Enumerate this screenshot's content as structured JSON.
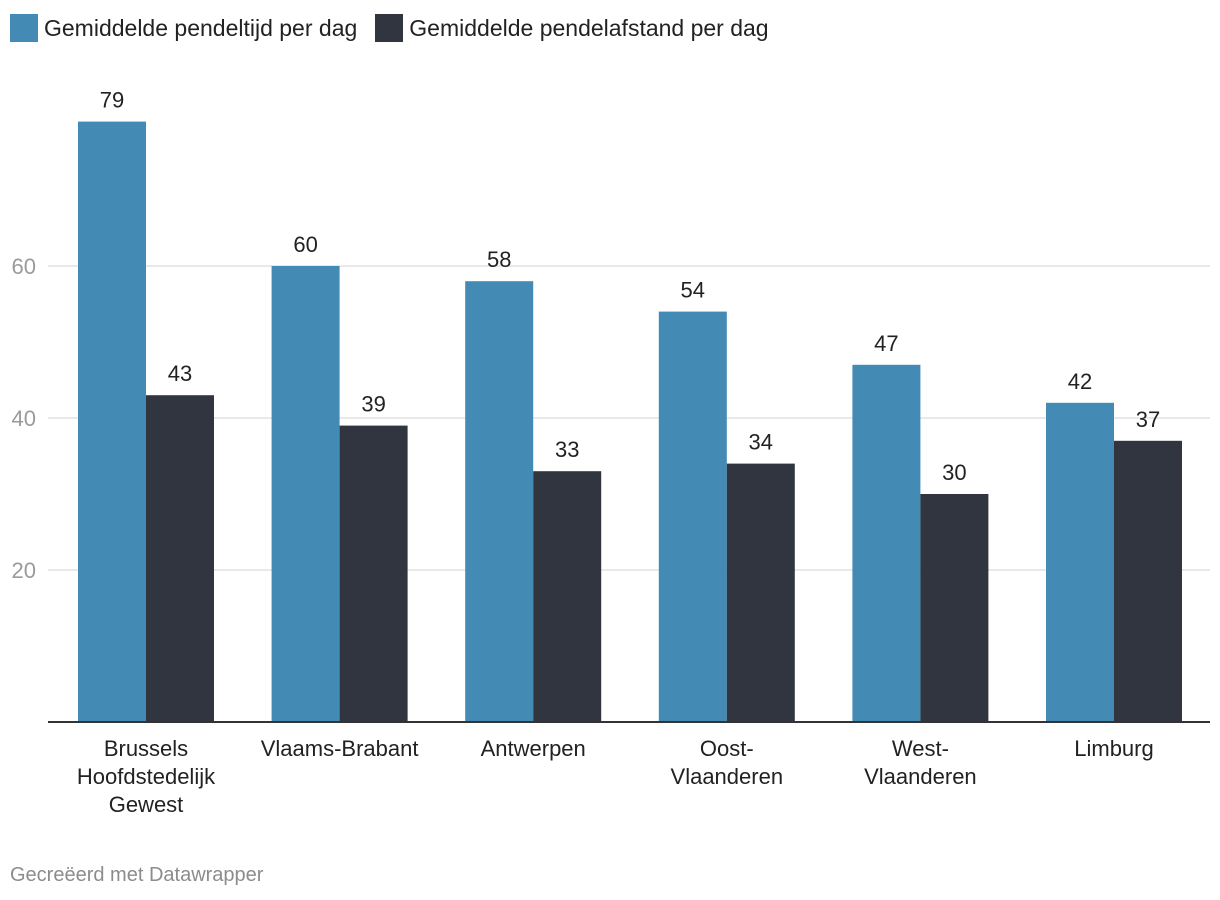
{
  "chart_data": {
    "type": "bar",
    "categories": [
      [
        "Brussels",
        "Hoofdstedelijk",
        "Gewest"
      ],
      [
        "Vlaams-Brabant"
      ],
      [
        "Antwerpen"
      ],
      [
        "Oost-",
        "Vlaanderen"
      ],
      [
        "West-",
        "Vlaanderen"
      ],
      [
        "Limburg"
      ]
    ],
    "series": [
      {
        "name": "Gemiddelde pendeltijd per dag",
        "color": "#438bb5",
        "values": [
          79,
          60,
          58,
          54,
          47,
          42
        ]
      },
      {
        "name": "Gemiddelde pendelafstand per dag",
        "color": "#30353f",
        "values": [
          43,
          39,
          33,
          34,
          30,
          37
        ]
      }
    ],
    "yticks": [
      20,
      40,
      60
    ],
    "ylim": [
      0,
      80
    ],
    "grid": true,
    "legend": "top-left"
  },
  "footer": {
    "credit": "Gecreëerd met Datawrapper"
  }
}
